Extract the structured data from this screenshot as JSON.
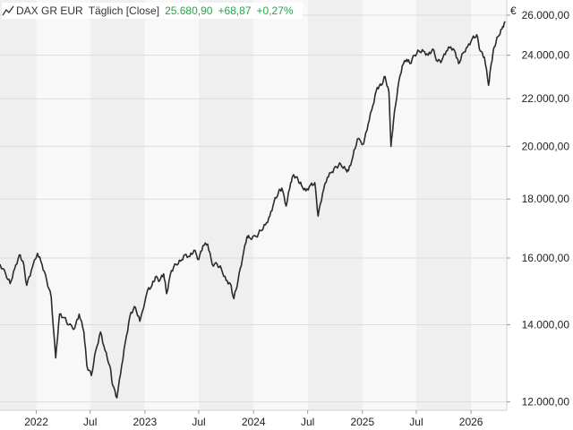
{
  "legend": {
    "instrument": "DAX GR EUR",
    "interval": "Täglich [Close]",
    "last": "25.680,90",
    "change": "+68,87",
    "change_pct": "+0,27%",
    "icon": "line-chart-icon",
    "positive_color": "#2aa34a"
  },
  "chart_data": {
    "type": "line",
    "title": "",
    "currency_unit": "€",
    "y_scale": "log",
    "ylim": [
      11800,
      26800
    ],
    "xlim": [
      "2021-09-01",
      "2026-05-01"
    ],
    "grid": true,
    "line_color": "#2b2b2b",
    "band_color": "#efefef",
    "y_ticks": [
      {
        "value": 12000,
        "label": "12.000,00"
      },
      {
        "value": 14000,
        "label": "14.000,00"
      },
      {
        "value": 16000,
        "label": "16.000,00"
      },
      {
        "value": 18000,
        "label": "18.000,00"
      },
      {
        "value": 20000,
        "label": "20.000,00"
      },
      {
        "value": 22000,
        "label": "22.000,00"
      },
      {
        "value": 24000,
        "label": "24.000,00"
      },
      {
        "value": 26000,
        "label": "26.000,00"
      }
    ],
    "x_ticks": [
      {
        "date": "2022-01-01",
        "label": "2022"
      },
      {
        "date": "2022-07-01",
        "label": "Jul"
      },
      {
        "date": "2023-01-01",
        "label": "2023"
      },
      {
        "date": "2023-07-01",
        "label": "Jul"
      },
      {
        "date": "2024-01-01",
        "label": "2024"
      },
      {
        "date": "2024-07-01",
        "label": "Jul"
      },
      {
        "date": "2025-01-01",
        "label": "2025"
      },
      {
        "date": "2025-07-01",
        "label": "Jul"
      },
      {
        "date": "2026-01-01",
        "label": "2026"
      }
    ],
    "series": [
      {
        "name": "DAX GR EUR",
        "x": [
          "2021-09-01",
          "2021-09-20",
          "2021-10-05",
          "2021-10-20",
          "2021-11-05",
          "2021-11-17",
          "2021-11-30",
          "2021-12-15",
          "2022-01-05",
          "2022-01-20",
          "2022-02-05",
          "2022-02-20",
          "2022-03-07",
          "2022-03-20",
          "2022-04-05",
          "2022-04-20",
          "2022-05-10",
          "2022-05-25",
          "2022-06-10",
          "2022-06-20",
          "2022-07-05",
          "2022-07-20",
          "2022-08-05",
          "2022-08-20",
          "2022-09-05",
          "2022-09-15",
          "2022-09-29",
          "2022-10-15",
          "2022-10-31",
          "2022-11-15",
          "2022-11-30",
          "2022-12-15",
          "2023-01-10",
          "2023-01-25",
          "2023-02-05",
          "2023-02-20",
          "2023-03-05",
          "2023-03-15",
          "2023-03-31",
          "2023-04-15",
          "2023-05-01",
          "2023-05-15",
          "2023-06-01",
          "2023-06-15",
          "2023-07-01",
          "2023-07-15",
          "2023-07-31",
          "2023-08-15",
          "2023-09-01",
          "2023-09-15",
          "2023-10-01",
          "2023-10-15",
          "2023-10-27",
          "2023-11-10",
          "2023-11-25",
          "2023-12-10",
          "2023-12-20",
          "2024-01-10",
          "2024-01-25",
          "2024-02-10",
          "2024-02-25",
          "2024-03-10",
          "2024-03-25",
          "2024-04-05",
          "2024-04-20",
          "2024-05-05",
          "2024-05-15",
          "2024-05-30",
          "2024-06-10",
          "2024-06-25",
          "2024-07-10",
          "2024-07-25",
          "2024-08-05",
          "2024-08-20",
          "2024-09-05",
          "2024-09-20",
          "2024-10-05",
          "2024-10-20",
          "2024-11-05",
          "2024-11-15",
          "2024-11-30",
          "2024-12-15",
          "2025-01-05",
          "2025-01-20",
          "2025-02-05",
          "2025-02-20",
          "2025-03-05",
          "2025-03-18",
          "2025-03-31",
          "2025-04-07",
          "2025-04-15",
          "2025-04-30",
          "2025-05-15",
          "2025-05-30",
          "2025-06-10",
          "2025-06-25",
          "2025-07-10",
          "2025-07-25",
          "2025-08-10",
          "2025-08-25",
          "2025-09-10",
          "2025-09-25",
          "2025-10-10",
          "2025-10-25",
          "2025-11-10",
          "2025-11-20",
          "2025-12-05",
          "2025-12-20",
          "2026-01-05",
          "2026-01-20",
          "2026-02-01",
          "2026-02-15",
          "2026-03-01",
          "2026-03-10",
          "2026-03-20",
          "2026-04-01",
          "2026-04-15",
          "2026-04-25"
        ],
        "y": [
          15800,
          15500,
          15200,
          15650,
          16100,
          15900,
          15150,
          15600,
          16150,
          15800,
          15300,
          14800,
          13100,
          14300,
          14200,
          14000,
          13900,
          14300,
          13800,
          12900,
          12650,
          13300,
          13800,
          13300,
          12900,
          12400,
          12100,
          12900,
          13700,
          14350,
          14500,
          14100,
          15000,
          15150,
          15400,
          15300,
          15500,
          14900,
          15600,
          15800,
          15900,
          16100,
          16050,
          16250,
          15950,
          16400,
          16450,
          15800,
          15800,
          15650,
          15300,
          15200,
          14750,
          15300,
          16000,
          16700,
          16650,
          16700,
          16900,
          17100,
          17400,
          17900,
          18250,
          18400,
          17750,
          18600,
          18900,
          18700,
          18500,
          18300,
          18500,
          18600,
          17400,
          18200,
          18800,
          19000,
          19200,
          19300,
          19100,
          19050,
          19600,
          20300,
          20100,
          20900,
          21700,
          22500,
          22600,
          23000,
          22300,
          20000,
          21000,
          22500,
          23500,
          23800,
          23600,
          24000,
          24200,
          24200,
          24000,
          24300,
          23700,
          23750,
          24200,
          24400,
          24100,
          23600,
          24100,
          24400,
          24800,
          25000,
          24200,
          23900,
          22600,
          23600,
          24400,
          24900,
          25300,
          25681
        ]
      }
    ]
  }
}
